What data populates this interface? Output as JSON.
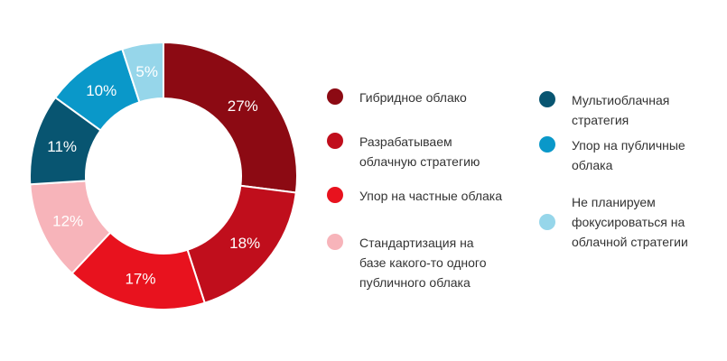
{
  "chart_data": {
    "type": "pie",
    "donut": true,
    "categories": [
      "Гибридное облако",
      "Разрабатываем облачную стратегию",
      "Упор на частные облака",
      "Стандартизация на базе какого-то одного публичного облака",
      "Мультиоблачная стратегия",
      "Упор на публичные облака",
      "Не планируем фокусироваться на облачной стратегии"
    ],
    "values": [
      27,
      18,
      17,
      12,
      11,
      10,
      5
    ],
    "value_labels": [
      "27%",
      "18%",
      "17%",
      "12%",
      "11%",
      "10%",
      "5%"
    ],
    "colors": [
      "#8c0a13",
      "#c00e1c",
      "#e8121e",
      "#f7b4ba",
      "#085571",
      "#0a98c9",
      "#96d6ea"
    ],
    "legend_placement": "right"
  },
  "legend": [
    {
      "lines": [
        "Гибридное облако"
      ],
      "color": "#8c0a13"
    },
    {
      "lines": [
        "Разрабатываем",
        "облачную стратегию"
      ],
      "color": "#c00e1c"
    },
    {
      "lines": [
        "Упор на частные облака"
      ],
      "color": "#e8121e"
    },
    {
      "lines": [
        "Стандартизация на",
        "базе какого-то одного",
        "публичного облака"
      ],
      "color": "#f7b4ba"
    },
    {
      "lines": [
        "Мультиоблачная",
        "стратегия"
      ],
      "color": "#085571"
    },
    {
      "lines": [
        "Упор на публичные",
        "облака"
      ],
      "color": "#0a98c9"
    },
    {
      "lines": [
        "Не планируем",
        "фокусироваться на",
        "облачной стратегии"
      ],
      "color": "#96d6ea"
    }
  ]
}
